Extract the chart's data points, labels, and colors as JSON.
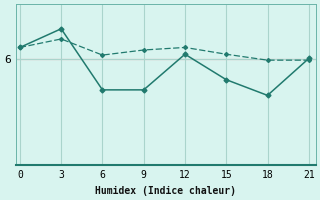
{
  "xlabel": "Humidex (Indice chaleur)",
  "x_ticks": [
    0,
    3,
    6,
    9,
    12,
    15,
    18,
    21
  ],
  "line1_x": [
    0,
    3,
    6,
    9,
    12,
    15,
    18,
    21
  ],
  "line1_y": [
    6.28,
    6.72,
    5.28,
    5.28,
    6.12,
    5.52,
    5.15,
    6.02
  ],
  "line2_x": [
    0,
    3,
    6,
    9,
    12,
    15,
    18,
    21
  ],
  "line2_y": [
    6.28,
    6.48,
    6.1,
    6.22,
    6.28,
    6.12,
    5.98,
    5.98
  ],
  "line_color": "#217a6e",
  "background_color": "#d8f4ef",
  "grid_color": "#aad4cc",
  "hline_color": "#e8b4b0",
  "hline_y": 6.0,
  "ylim": [
    3.5,
    7.3
  ],
  "yticks": [
    6
  ],
  "xlim": [
    -0.3,
    21.5
  ]
}
